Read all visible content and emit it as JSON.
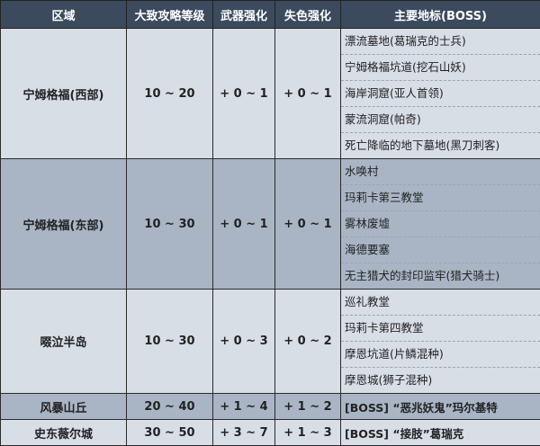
{
  "headers": [
    "区域",
    "大致攻略等级",
    "武器强化",
    "失色强化",
    "主要地标(BOSS)"
  ],
  "rows": [
    {
      "region": "宁姆格福(西部)",
      "level": "10 ~ 20",
      "weapon": "+ 0 ~ 1",
      "faded": "+ 0 ~ 1",
      "landmarks": [
        "漂流墓地(葛瑞克的士兵)",
        "宁姆格福坑道(挖石山妖)",
        "海岸洞窟(亚人首领)",
        "蒙流洞窟(帕奇)",
        "死亡降临的地下墓地(黑刀刺客)"
      ]
    },
    {
      "region": "宁姆格福(东部)",
      "level": "10 ~ 30",
      "weapon": "+ 0 ~ 1",
      "faded": "+ 0 ~ 1",
      "landmarks": [
        "水唤村",
        "玛莉卡第三教堂",
        "雾林废墟",
        "海德要塞",
        "无主猎犬的封印监牢(猎犬骑士)"
      ]
    },
    {
      "region": "啜泣半岛",
      "level": "10 ~ 30",
      "weapon": "+ 0 ~ 3",
      "faded": "+ 0 ~ 2",
      "landmarks": [
        "巡礼教堂",
        "玛莉卡第四教堂",
        "摩恩坑道(片鳞混种)",
        "摩恩城(狮子混种)"
      ]
    },
    {
      "region": "风暴山丘",
      "level": "20 ~ 40",
      "weapon": "+ 1 ~ 4",
      "faded": "+ 1 ~ 2",
      "landmarks": [
        "[BOSS] “恶兆妖鬼”玛尔基特"
      ]
    },
    {
      "region": "史东薇尔城",
      "level": "30 ~ 50",
      "weapon": "+ 3 ~ 7",
      "faded": "+ 1 ~ 3",
      "landmarks": [
        "[BOSS] “接肢”葛瑞克"
      ]
    }
  ],
  "colors": {
    "header": "#3c4a5d",
    "row_light": "#d8dee6",
    "row_dark": "#a9b5c5"
  }
}
